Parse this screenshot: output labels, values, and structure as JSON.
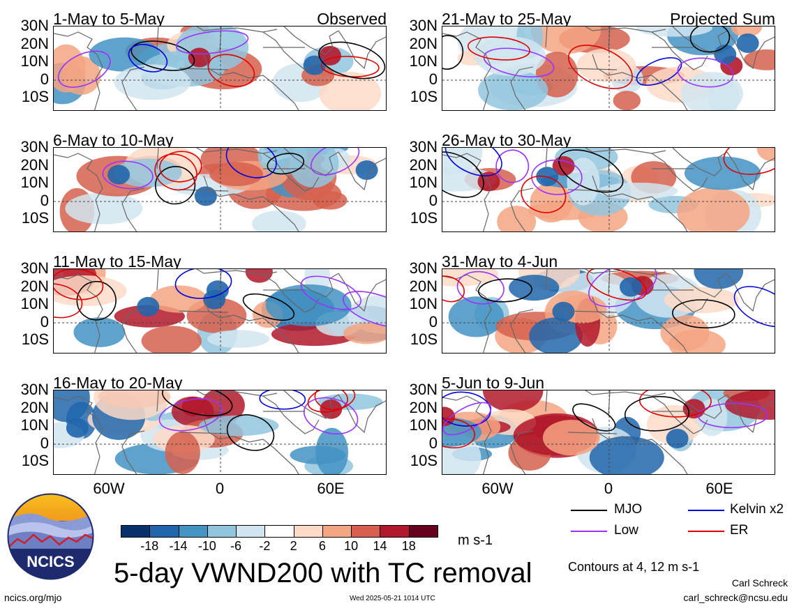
{
  "left_column": {
    "panels": [
      {
        "title": "1-May to 5-May",
        "corner": "Observed"
      },
      {
        "title": "6-May to 10-May",
        "corner": ""
      },
      {
        "title": "11-May to 15-May",
        "corner": ""
      },
      {
        "title": "16-May to 20-May",
        "corner": ""
      }
    ]
  },
  "right_column": {
    "panels": [
      {
        "title": "21-May to 25-May",
        "corner": "Projected Sum"
      },
      {
        "title": "26-May to 30-May",
        "corner": ""
      },
      {
        "title": "31-May to 4-Jun",
        "corner": ""
      },
      {
        "title": "5-Jun to 9-Jun",
        "corner": ""
      }
    ]
  },
  "axes": {
    "lat_labels": [
      "30N",
      "20N",
      "10N",
      "0",
      "10S"
    ],
    "lon_labels": [
      "60W",
      "0",
      "60E"
    ]
  },
  "title": "5-day VWND200 with TC removal",
  "colorbar": {
    "unit": "m s-1",
    "tick_labels": [
      "-18",
      "-14",
      "-10",
      "-6",
      "-2",
      "2",
      "6",
      "10",
      "14",
      "18"
    ],
    "colors": [
      "#08306b",
      "#2166ac",
      "#4393c3",
      "#92c5de",
      "#d1e5f0",
      "#ffffff",
      "#fddbc7",
      "#f4a582",
      "#d6604d",
      "#b2182b",
      "#67001f"
    ]
  },
  "legend": {
    "items": [
      {
        "label": "MJO",
        "color": "#000000"
      },
      {
        "label": "Kelvin x2",
        "color": "#0000dd"
      },
      {
        "label": "Low",
        "color": "#9933ff"
      },
      {
        "label": "ER",
        "color": "#dd0000"
      }
    ],
    "contours_note": "Contours at 4, 12 m s-1"
  },
  "logo": {
    "text": "NCICS"
  },
  "footer": {
    "url": "ncics.org/mjo",
    "timestamp": "Wed 2025-05-21 1014 UTC",
    "author": "Carl Schreck",
    "email": "carl_schreck@ncsu.edu"
  }
}
